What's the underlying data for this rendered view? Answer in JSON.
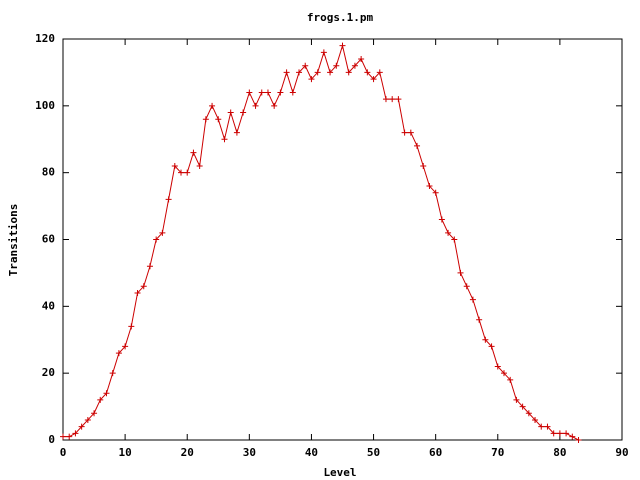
{
  "chart_data": {
    "type": "line",
    "title": "frogs.1.pm",
    "xlabel": "Level",
    "ylabel": "Transitions",
    "x": [
      0,
      1,
      2,
      3,
      4,
      5,
      6,
      7,
      8,
      9,
      10,
      11,
      12,
      13,
      14,
      15,
      16,
      17,
      18,
      19,
      20,
      21,
      22,
      23,
      24,
      25,
      26,
      27,
      28,
      29,
      30,
      31,
      32,
      33,
      34,
      35,
      36,
      37,
      38,
      39,
      40,
      41,
      42,
      43,
      44,
      45,
      46,
      47,
      48,
      49,
      50,
      51,
      52,
      53,
      54,
      55,
      56,
      57,
      58,
      59,
      60,
      61,
      62,
      63,
      64,
      65,
      66,
      67,
      68,
      69,
      70,
      71,
      72,
      73,
      74,
      75,
      76,
      77,
      78,
      79,
      80,
      81,
      82,
      83
    ],
    "series": [
      {
        "color": "#cc0000",
        "values": [
          1,
          1,
          2,
          4,
          6,
          8,
          12,
          14,
          20,
          26,
          28,
          34,
          44,
          46,
          52,
          60,
          62,
          72,
          82,
          80,
          80,
          86,
          82,
          96,
          100,
          96,
          90,
          98,
          92,
          98,
          104,
          100,
          104,
          104,
          100,
          104,
          110,
          104,
          110,
          112,
          108,
          110,
          116,
          110,
          112,
          118,
          110,
          112,
          114,
          110,
          108,
          110,
          102,
          102,
          102,
          92,
          92,
          88,
          82,
          76,
          74,
          66,
          62,
          60,
          50,
          46,
          42,
          36,
          30,
          28,
          22,
          20,
          18,
          12,
          10,
          8,
          6,
          4,
          4,
          2,
          2,
          2,
          1,
          0
        ]
      }
    ],
    "xlim": [
      0,
      90
    ],
    "xticks": [
      0,
      10,
      20,
      30,
      40,
      50,
      60,
      70,
      80,
      90
    ],
    "ylim": [
      0,
      120
    ],
    "yticks": [
      0,
      20,
      40,
      60,
      80,
      100,
      120
    ]
  }
}
